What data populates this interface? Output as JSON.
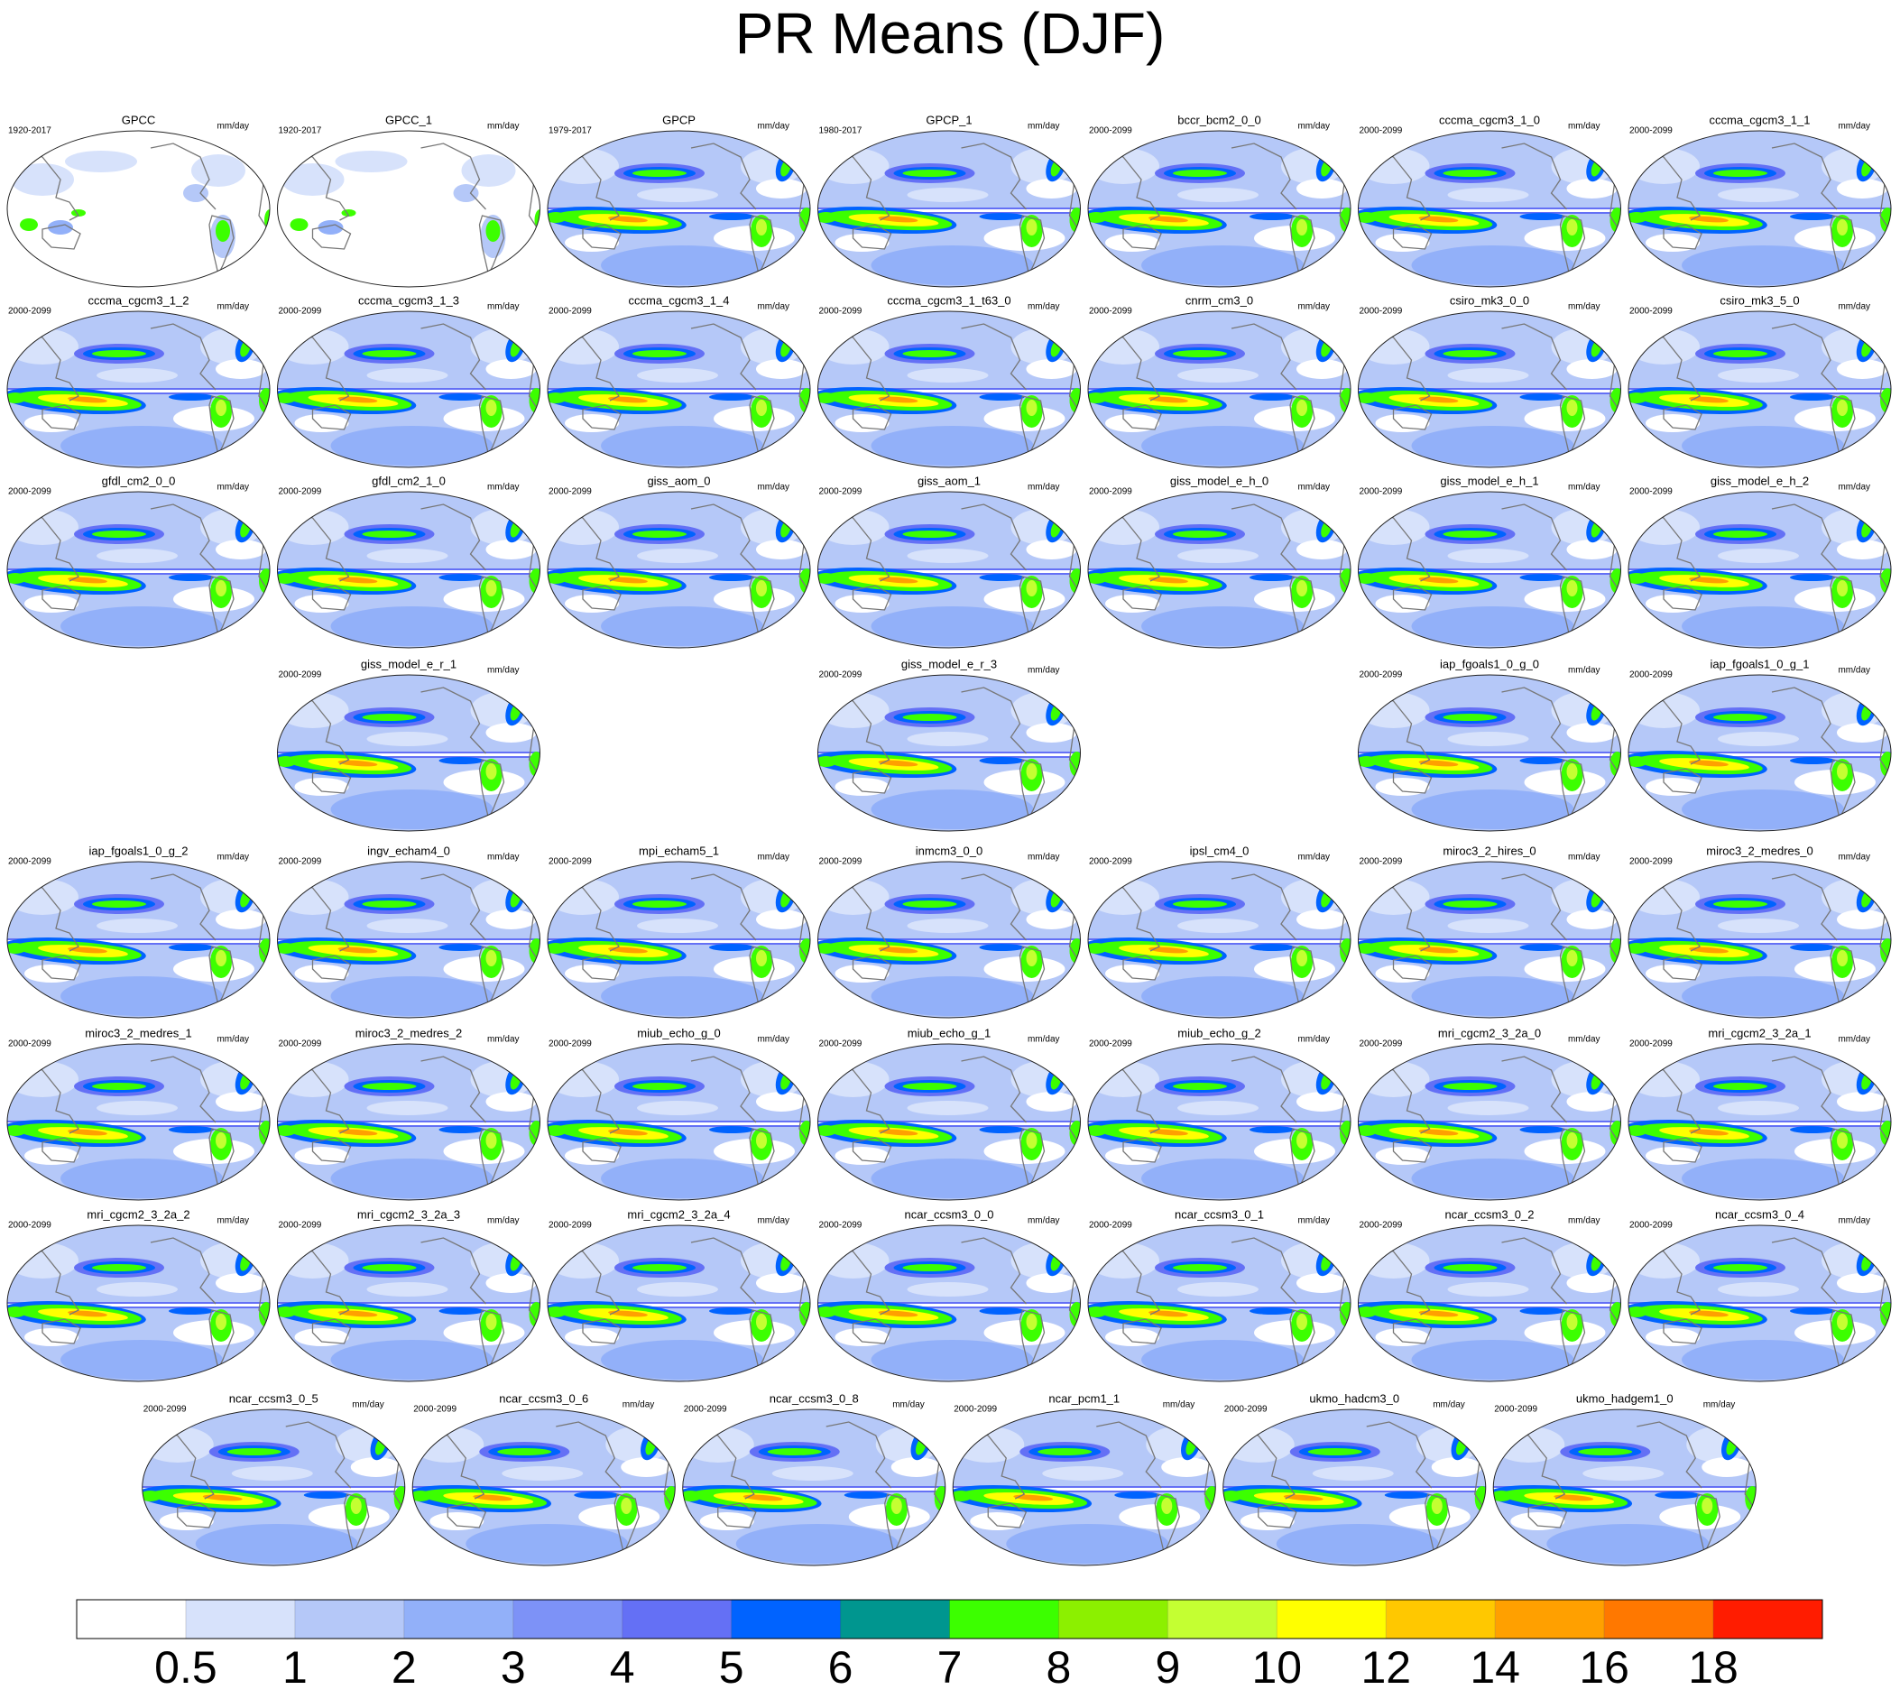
{
  "chart_data": {
    "type": "map-panels",
    "title": "PR Means (DJF)",
    "panels": [
      {
        "label": "GPCC",
        "period": "1920-2017",
        "units": "mm/day"
      },
      {
        "label": "GPCC_1",
        "period": "1920-2017",
        "units": "mm/day"
      },
      {
        "label": "GPCP",
        "period": "1979-2017",
        "units": "mm/day"
      },
      {
        "label": "GPCP_1",
        "period": "1980-2017",
        "units": "mm/day"
      },
      {
        "label": "bccr_bcm2_0_0",
        "period": "2000-2099",
        "units": "mm/day"
      },
      {
        "label": "cccma_cgcm3_1_0",
        "period": "2000-2099",
        "units": "mm/day"
      },
      {
        "label": "cccma_cgcm3_1_1",
        "period": "2000-2099",
        "units": "mm/day"
      },
      {
        "label": "cccma_cgcm3_1_2",
        "period": "2000-2099",
        "units": "mm/day"
      },
      {
        "label": "cccma_cgcm3_1_3",
        "period": "2000-2099",
        "units": "mm/day"
      },
      {
        "label": "cccma_cgcm3_1_4",
        "period": "2000-2099",
        "units": "mm/day"
      },
      {
        "label": "cccma_cgcm3_1_t63_0",
        "period": "2000-2099",
        "units": "mm/day"
      },
      {
        "label": "cnrm_cm3_0",
        "period": "2000-2099",
        "units": "mm/day"
      },
      {
        "label": "csiro_mk3_0_0",
        "period": "2000-2099",
        "units": "mm/day"
      },
      {
        "label": "csiro_mk3_5_0",
        "period": "2000-2099",
        "units": "mm/day"
      },
      {
        "label": "gfdl_cm2_0_0",
        "period": "2000-2099",
        "units": "mm/day"
      },
      {
        "label": "gfdl_cm2_1_0",
        "period": "2000-2099",
        "units": "mm/day"
      },
      {
        "label": "giss_aom_0",
        "period": "2000-2099",
        "units": "mm/day"
      },
      {
        "label": "giss_aom_1",
        "period": "2000-2099",
        "units": "mm/day"
      },
      {
        "label": "giss_model_e_h_0",
        "period": "2000-2099",
        "units": "mm/day"
      },
      {
        "label": "giss_model_e_h_1",
        "period": "2000-2099",
        "units": "mm/day"
      },
      {
        "label": "giss_model_e_h_2",
        "period": "2000-2099",
        "units": "mm/day"
      },
      {
        "label": "giss_model_e_r_1",
        "period": "2000-2099",
        "units": "mm/day"
      },
      {
        "label": "giss_model_e_r_3",
        "period": "2000-2099",
        "units": "mm/day"
      },
      {
        "label": "iap_fgoals1_0_g_0",
        "period": "2000-2099",
        "units": "mm/day"
      },
      {
        "label": "iap_fgoals1_0_g_1",
        "period": "2000-2099",
        "units": "mm/day"
      },
      {
        "label": "iap_fgoals1_0_g_2",
        "period": "2000-2099",
        "units": "mm/day"
      },
      {
        "label": "ingv_echam4_0",
        "period": "2000-2099",
        "units": "mm/day"
      },
      {
        "label": "mpi_echam5_1",
        "period": "2000-2099",
        "units": "mm/day"
      },
      {
        "label": "inmcm3_0_0",
        "period": "2000-2099",
        "units": "mm/day"
      },
      {
        "label": "ipsl_cm4_0",
        "period": "2000-2099",
        "units": "mm/day"
      },
      {
        "label": "miroc3_2_hires_0",
        "period": "2000-2099",
        "units": "mm/day"
      },
      {
        "label": "miroc3_2_medres_0",
        "period": "2000-2099",
        "units": "mm/day"
      },
      {
        "label": "miroc3_2_medres_1",
        "period": "2000-2099",
        "units": "mm/day"
      },
      {
        "label": "miroc3_2_medres_2",
        "period": "2000-2099",
        "units": "mm/day"
      },
      {
        "label": "miub_echo_g_0",
        "period": "2000-2099",
        "units": "mm/day"
      },
      {
        "label": "miub_echo_g_1",
        "period": "2000-2099",
        "units": "mm/day"
      },
      {
        "label": "miub_echo_g_2",
        "period": "2000-2099",
        "units": "mm/day"
      },
      {
        "label": "mri_cgcm2_3_2a_0",
        "period": "2000-2099",
        "units": "mm/day"
      },
      {
        "label": "mri_cgcm2_3_2a_1",
        "period": "2000-2099",
        "units": "mm/day"
      },
      {
        "label": "mri_cgcm2_3_2a_2",
        "period": "2000-2099",
        "units": "mm/day"
      },
      {
        "label": "mri_cgcm2_3_2a_3",
        "period": "2000-2099",
        "units": "mm/day"
      },
      {
        "label": "mri_cgcm2_3_2a_4",
        "period": "2000-2099",
        "units": "mm/day"
      },
      {
        "label": "ncar_ccsm3_0_0",
        "period": "2000-2099",
        "units": "mm/day"
      },
      {
        "label": "ncar_ccsm3_0_1",
        "period": "2000-2099",
        "units": "mm/day"
      },
      {
        "label": "ncar_ccsm3_0_2",
        "period": "2000-2099",
        "units": "mm/day"
      },
      {
        "label": "ncar_ccsm3_0_4",
        "period": "2000-2099",
        "units": "mm/day"
      },
      {
        "label": "ncar_ccsm3_0_5",
        "period": "2000-2099",
        "units": "mm/day"
      },
      {
        "label": "ncar_ccsm3_0_6",
        "period": "2000-2099",
        "units": "mm/day"
      },
      {
        "label": "ncar_ccsm3_0_8",
        "period": "2000-2099",
        "units": "mm/day"
      },
      {
        "label": "ncar_pcm1_1",
        "period": "2000-2099",
        "units": "mm/day"
      },
      {
        "label": "ukmo_hadcm3_0",
        "period": "2000-2099",
        "units": "mm/day"
      },
      {
        "label": "ukmo_hadgem1_0",
        "period": "2000-2099",
        "units": "mm/day"
      }
    ],
    "colorbar": {
      "levels": [
        0.5,
        1,
        2,
        3,
        4,
        5,
        6,
        7,
        8,
        9,
        10,
        12,
        14,
        16,
        18
      ],
      "colors": [
        "#ffffff",
        "#d7e2fb",
        "#b5c8f8",
        "#92b0f9",
        "#7d92f7",
        "#6470f5",
        "#0063ff",
        "#00968f",
        "#3cff00",
        "#8cf000",
        "#c4ff32",
        "#ffff00",
        "#ffc800",
        "#ffa000",
        "#ff7800",
        "#ff1c00"
      ]
    }
  }
}
